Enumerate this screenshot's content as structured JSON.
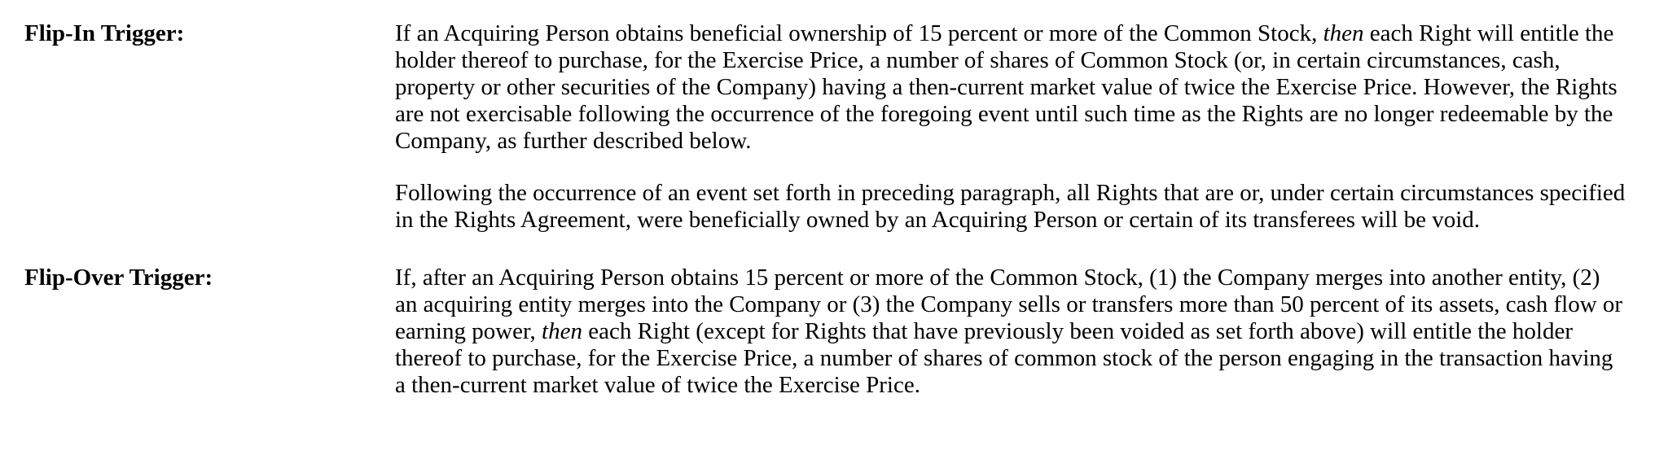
{
  "page": {
    "background_color": "#ffffff",
    "text_color": "#000000"
  },
  "rows": [
    {
      "label": "Flip-In Trigger:",
      "paragraphs": [
        {
          "segments": [
            {
              "text": "If an Acquiring Person obtains beneficial ownership of 15 percent or more of the Common Stock, ",
              "italic": false
            },
            {
              "text": "then",
              "italic": true
            },
            {
              "text": " each Right will entitle the holder thereof to purchase, for the Exercise Price, a number of shares of Common Stock (or, in certain circumstances, cash, property or other securities of the Company) having a then-current market value of twice the Exercise Price. However, the Rights are not exercisable following the occurrence of the foregoing event until such time as the Rights are no longer redeemable by the Company, as further described below.",
              "italic": false
            }
          ]
        },
        {
          "segments": [
            {
              "text": "Following the occurrence of an event set forth in preceding paragraph, all Rights that are or, under certain circumstances specified in the Rights Agreement, were beneficially owned by an Acquiring Person or certain of its transferees will be void.",
              "italic": false
            }
          ]
        }
      ]
    },
    {
      "label": "Flip-Over Trigger:",
      "paragraphs": [
        {
          "segments": [
            {
              "text": "If, after an Acquiring Person obtains 15 percent or more of the Common Stock, (1) the Company merges into another entity, (2) an acquiring entity merges into the Company or (3) the Company sells or transfers more than 50 percent of its assets, cash flow or earning power, ",
              "italic": false
            },
            {
              "text": "then",
              "italic": true
            },
            {
              "text": " each Right (except for Rights that have previously been voided as set forth above) will entitle the holder thereof to purchase, for the Exercise Price, a number of shares of common stock of the person engaging in the transaction having a then-current market value of twice the Exercise Price.",
              "italic": false
            }
          ]
        }
      ]
    }
  ]
}
